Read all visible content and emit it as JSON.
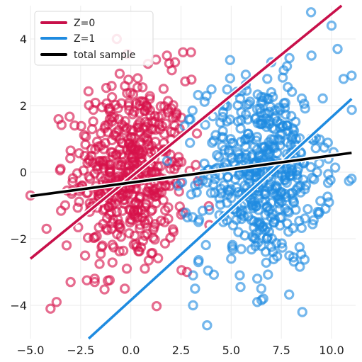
{
  "chart_data": {
    "type": "scatter",
    "title": "",
    "xlabel": "",
    "ylabel": "",
    "xlim": [
      -5,
      11.2
    ],
    "ylim": [
      -5,
      5
    ],
    "xticks": [
      -5,
      -2.5,
      0,
      2.5,
      5,
      7.5,
      10
    ],
    "xtick_labels": [
      "−5.0",
      "−2.5",
      "0.0",
      "2.5",
      "5.0",
      "7.5",
      "10.0"
    ],
    "yticks": [
      -4,
      -2,
      0,
      2,
      4
    ],
    "ytick_labels": [
      "−4",
      "−2",
      "0",
      "2",
      "4"
    ],
    "grid": true,
    "legend_position": "top-left",
    "series": [
      {
        "name": "Z=0",
        "kind": "points",
        "color": "#d6124a",
        "marker": "hollow-circle",
        "cluster": {
          "x_mean": 0.0,
          "x_sd": 1.4,
          "y_mean": 0.0,
          "y_sd": 1.4,
          "count": 500
        },
        "sample_points": [
          [
            -0.7,
            4.0
          ],
          [
            1.8,
            3.5
          ],
          [
            2.6,
            3.6
          ],
          [
            3.0,
            3.6
          ],
          [
            2.2,
            3.3
          ],
          [
            -4.0,
            -4.1
          ],
          [
            -3.7,
            -3.9
          ],
          [
            -3.2,
            -2.2
          ],
          [
            -4.2,
            -1.7
          ],
          [
            -5.0,
            -0.7
          ],
          [
            -3.5,
            0.1
          ],
          [
            -2.8,
            1.4
          ],
          [
            -3.0,
            -3.3
          ],
          [
            -1.8,
            -3.3
          ],
          [
            -1.8,
            -3.2
          ],
          [
            -0.3,
            -3.5
          ],
          [
            -0.2,
            -2.9
          ],
          [
            0.7,
            -2.9
          ],
          [
            2.8,
            -3.0
          ],
          [
            -1.6,
            -0.8
          ],
          [
            1.0,
            1.3
          ]
        ]
      },
      {
        "name": "Z=1",
        "kind": "points",
        "color": "#1f8be0",
        "marker": "hollow-circle",
        "cluster": {
          "x_mean": 6.5,
          "x_sd": 1.5,
          "y_mean": 0.0,
          "y_sd": 1.4,
          "count": 500
        },
        "sample_points": [
          [
            10.0,
            4.4
          ],
          [
            10.3,
            3.7
          ],
          [
            11.0,
            2.9
          ],
          [
            10.6,
            2.8
          ],
          [
            7.0,
            3.3
          ],
          [
            9.0,
            3.5
          ],
          [
            3.1,
            -3.1
          ],
          [
            3.2,
            -3.5
          ],
          [
            3.8,
            -4.6
          ],
          [
            3.1,
            -4.0
          ],
          [
            3.2,
            -0.4
          ],
          [
            4.6,
            1.8
          ],
          [
            5.5,
            1.8
          ],
          [
            5.0,
            -2.6
          ],
          [
            6.3,
            -3.2
          ],
          [
            6.5,
            -3.5
          ],
          [
            6.6,
            -3.8
          ],
          [
            6.3,
            -3.9
          ],
          [
            9.7,
            -1.1
          ],
          [
            10.1,
            0.6
          ],
          [
            9.4,
            -1.2
          ],
          [
            7.0,
            2.4
          ]
        ]
      },
      {
        "name": "Z=0",
        "kind": "line",
        "color": "#c8104a",
        "points": [
          [
            -5.0,
            -2.6
          ],
          [
            10.5,
            5.0
          ]
        ]
      },
      {
        "name": "Z=1",
        "kind": "line",
        "color": "#1f8be0",
        "points": [
          [
            -2.1,
            -5.0
          ],
          [
            11.0,
            2.2
          ]
        ]
      },
      {
        "name": "total sample",
        "kind": "line",
        "color": "#000000",
        "points": [
          [
            -5.0,
            -0.72
          ],
          [
            11.0,
            0.58
          ]
        ]
      }
    ],
    "legend": [
      {
        "label": "Z=0",
        "color": "#c8104a"
      },
      {
        "label": "Z=1",
        "color": "#1f8be0"
      },
      {
        "label": "total sample",
        "color": "#000000"
      }
    ]
  }
}
